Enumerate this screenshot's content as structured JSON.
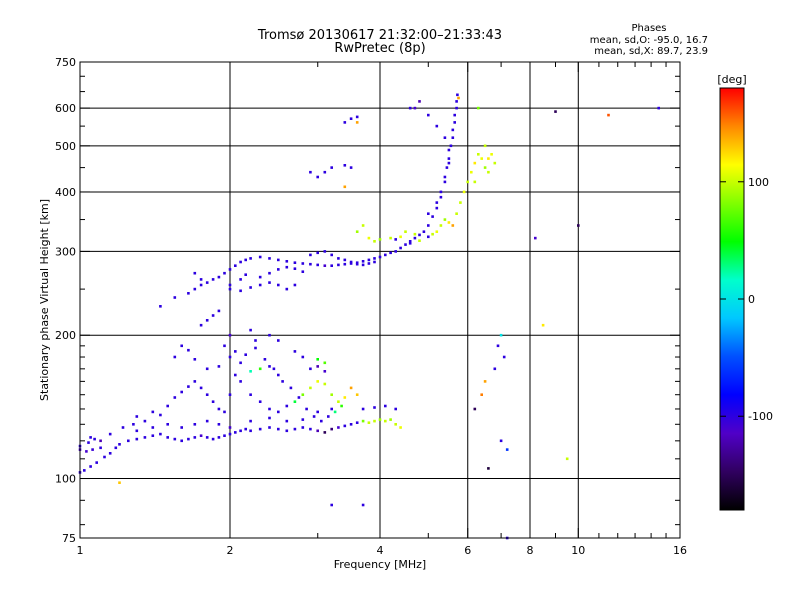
{
  "chart_data": {
    "type": "scatter",
    "title": "Tromsø 20130617 21:32:00–21:33:43",
    "subtitle": "RwPretec (8p)",
    "xlabel": "Frequency [MHz]",
    "ylabel": "Stationary phase Virtual Height [km]",
    "x_scale": "log",
    "y_scale": "log",
    "xlim": [
      1,
      16
    ],
    "ylim": [
      75,
      750
    ],
    "x_ticks": [
      1,
      2,
      4,
      6,
      8,
      10,
      16
    ],
    "x_tick_labels": [
      "1",
      "2",
      "4",
      "6",
      "8",
      "10",
      "16"
    ],
    "x_minor_ticks": [
      3,
      5,
      7,
      9,
      11,
      12,
      13,
      14,
      15
    ],
    "y_ticks": [
      75,
      100,
      200,
      300,
      400,
      500,
      600,
      750
    ],
    "y_tick_labels": [
      "75",
      "100",
      "200",
      "300",
      "400",
      "500",
      "600",
      "750"
    ],
    "y_minor_ticks": [
      80,
      90,
      110,
      120,
      130,
      140,
      150,
      160,
      170,
      180,
      190,
      250,
      350,
      450,
      550,
      650,
      700
    ],
    "x_grid": [
      2,
      4,
      6,
      8,
      10
    ],
    "y_grid": [
      100,
      200,
      300,
      400,
      500,
      600
    ],
    "grid": true,
    "phase_stats": {
      "heading": "Phases",
      "line_o": "mean, sd,O: -95.0, 16.7",
      "line_x": "mean, sd,X:  89.7, 23.9"
    },
    "colorbar": {
      "unit": "[deg]",
      "range": [
        -180,
        180
      ],
      "ticks": [
        100,
        0,
        -100
      ],
      "tick_labels": [
        "100",
        "0",
        "-100"
      ],
      "colors": [
        "#ff0000",
        "#ff8800",
        "#ffff00",
        "#80ff00",
        "#00ff00",
        "#00ffcc",
        "#00c8ff",
        "#0050ff",
        "#0000ff",
        "#5000c8",
        "#300060",
        "#000000"
      ]
    },
    "points": [
      [
        1.0,
        103,
        -100
      ],
      [
        1.02,
        104,
        -100
      ],
      [
        1.05,
        106,
        -100
      ],
      [
        1.08,
        108,
        -100
      ],
      [
        1.12,
        111,
        -100
      ],
      [
        1.15,
        113,
        -100
      ],
      [
        1.18,
        116,
        -100
      ],
      [
        1.2,
        118,
        -100
      ],
      [
        1.0,
        115,
        -110
      ],
      [
        1.03,
        114,
        -110
      ],
      [
        1.06,
        115,
        -105
      ],
      [
        1.1,
        116,
        -100
      ],
      [
        1.0,
        117,
        -100
      ],
      [
        1.04,
        119,
        -100
      ],
      [
        1.07,
        121,
        -100
      ],
      [
        1.25,
        120,
        -100
      ],
      [
        1.3,
        121,
        -100
      ],
      [
        1.35,
        122,
        -100
      ],
      [
        1.4,
        123,
        -100
      ],
      [
        1.45,
        124,
        -100
      ],
      [
        1.5,
        122,
        -100
      ],
      [
        1.55,
        121,
        -100
      ],
      [
        1.6,
        120,
        -100
      ],
      [
        1.65,
        121,
        -100
      ],
      [
        1.7,
        122,
        -100
      ],
      [
        1.75,
        123,
        -110
      ],
      [
        1.8,
        122,
        -100
      ],
      [
        1.85,
        121,
        -100
      ],
      [
        1.9,
        122,
        -100
      ],
      [
        1.95,
        123,
        -100
      ],
      [
        2.0,
        124,
        -100
      ],
      [
        2.05,
        125,
        -100
      ],
      [
        2.1,
        126,
        -100
      ],
      [
        2.15,
        127,
        -100
      ],
      [
        2.2,
        126,
        -100
      ],
      [
        2.3,
        127,
        -100
      ],
      [
        2.4,
        128,
        -100
      ],
      [
        2.5,
        127,
        -100
      ],
      [
        2.6,
        126,
        -100
      ],
      [
        2.7,
        127,
        -100
      ],
      [
        2.8,
        128,
        -100
      ],
      [
        2.9,
        127,
        -100
      ],
      [
        3.0,
        126,
        -120
      ],
      [
        3.1,
        125,
        -150
      ],
      [
        3.2,
        127,
        -140
      ],
      [
        3.3,
        128,
        -110
      ],
      [
        3.4,
        129,
        -100
      ],
      [
        3.5,
        130,
        -100
      ],
      [
        3.6,
        131,
        -100
      ],
      [
        3.7,
        132,
        80
      ],
      [
        3.8,
        131,
        100
      ],
      [
        3.9,
        132,
        100
      ],
      [
        4.0,
        133,
        90
      ],
      [
        4.1,
        132,
        100
      ],
      [
        4.2,
        133,
        90
      ],
      [
        4.3,
        130,
        100
      ],
      [
        4.4,
        128,
        110
      ],
      [
        3.7,
        140,
        -100
      ],
      [
        3.9,
        141,
        -100
      ],
      [
        4.1,
        142,
        -100
      ],
      [
        4.3,
        140,
        -100
      ],
      [
        1.3,
        135,
        -100
      ],
      [
        1.4,
        138,
        -100
      ],
      [
        1.5,
        142,
        -100
      ],
      [
        1.55,
        148,
        -100
      ],
      [
        1.6,
        152,
        -100
      ],
      [
        1.65,
        156,
        -100
      ],
      [
        1.7,
        160,
        -100
      ],
      [
        1.75,
        155,
        -100
      ],
      [
        1.8,
        150,
        -100
      ],
      [
        1.85,
        145,
        -100
      ],
      [
        1.9,
        140,
        -100
      ],
      [
        1.95,
        138,
        -100
      ],
      [
        2.0,
        150,
        -100
      ],
      [
        2.05,
        165,
        -100
      ],
      [
        2.1,
        175,
        -100
      ],
      [
        2.0,
        180,
        -100
      ],
      [
        1.95,
        190,
        -100
      ],
      [
        2.0,
        200,
        -110
      ],
      [
        2.05,
        185,
        -100
      ],
      [
        2.1,
        160,
        -100
      ],
      [
        2.2,
        150,
        -100
      ],
      [
        2.3,
        145,
        -100
      ],
      [
        2.4,
        140,
        -100
      ],
      [
        2.5,
        138,
        -100
      ],
      [
        2.6,
        142,
        -100
      ],
      [
        2.7,
        145,
        40
      ],
      [
        2.8,
        150,
        80
      ],
      [
        2.9,
        155,
        100
      ],
      [
        3.0,
        160,
        110
      ],
      [
        3.1,
        158,
        100
      ],
      [
        3.2,
        150,
        90
      ],
      [
        3.3,
        145,
        100
      ],
      [
        3.4,
        148,
        120
      ],
      [
        3.5,
        155,
        140
      ],
      [
        3.6,
        150,
        130
      ],
      [
        2.9,
        170,
        -100
      ],
      [
        3.0,
        172,
        -120
      ],
      [
        3.1,
        168,
        -110
      ],
      [
        2.5,
        165,
        -100
      ],
      [
        2.4,
        172,
        -100
      ],
      [
        1.8,
        170,
        -100
      ],
      [
        1.7,
        178,
        -100
      ],
      [
        1.9,
        172,
        -100
      ],
      [
        2.2,
        168,
        20
      ],
      [
        2.3,
        170,
        60
      ],
      [
        1.45,
        230,
        -100
      ],
      [
        1.55,
        240,
        -100
      ],
      [
        1.65,
        245,
        -100
      ],
      [
        1.7,
        250,
        -100
      ],
      [
        1.75,
        255,
        -100
      ],
      [
        1.8,
        258,
        -100
      ],
      [
        1.85,
        262,
        -100
      ],
      [
        1.9,
        265,
        -100
      ],
      [
        1.95,
        270,
        -100
      ],
      [
        2.0,
        275,
        -100
      ],
      [
        2.05,
        280,
        -100
      ],
      [
        2.1,
        285,
        -100
      ],
      [
        2.15,
        288,
        -100
      ],
      [
        2.2,
        290,
        -100
      ],
      [
        2.3,
        292,
        -100
      ],
      [
        2.4,
        290,
        -100
      ],
      [
        2.5,
        288,
        -100
      ],
      [
        2.6,
        286,
        -100
      ],
      [
        2.7,
        284,
        -100
      ],
      [
        2.8,
        283,
        -100
      ],
      [
        2.9,
        282,
        -100
      ],
      [
        3.0,
        281,
        -100
      ],
      [
        3.1,
        280,
        -110
      ],
      [
        3.2,
        280,
        -100
      ],
      [
        3.3,
        281,
        -100
      ],
      [
        3.4,
        282,
        -100
      ],
      [
        3.5,
        283,
        -100
      ],
      [
        3.6,
        284,
        -100
      ],
      [
        3.7,
        286,
        -100
      ],
      [
        3.8,
        288,
        -100
      ],
      [
        3.9,
        290,
        -100
      ],
      [
        4.0,
        292,
        -100
      ],
      [
        4.1,
        295,
        -100
      ],
      [
        4.2,
        298,
        -100
      ],
      [
        4.3,
        300,
        -100
      ],
      [
        4.4,
        305,
        -100
      ],
      [
        4.5,
        310,
        -100
      ],
      [
        4.6,
        315,
        -100
      ],
      [
        4.7,
        320,
        -100
      ],
      [
        4.8,
        325,
        -100
      ],
      [
        4.9,
        330,
        -100
      ],
      [
        5.0,
        340,
        -100
      ],
      [
        5.1,
        355,
        -100
      ],
      [
        5.2,
        370,
        -100
      ],
      [
        5.3,
        390,
        -100
      ],
      [
        5.4,
        420,
        -100
      ],
      [
        5.5,
        460,
        -100
      ],
      [
        5.55,
        500,
        -100
      ],
      [
        5.6,
        540,
        -100
      ],
      [
        5.65,
        580,
        -100
      ],
      [
        5.7,
        620,
        -100
      ],
      [
        5.72,
        640,
        -100
      ],
      [
        2.0,
        250,
        -100
      ],
      [
        2.1,
        248,
        -100
      ],
      [
        2.2,
        252,
        -100
      ],
      [
        2.3,
        255,
        -100
      ],
      [
        2.4,
        258,
        -100
      ],
      [
        2.5,
        255,
        -100
      ],
      [
        2.6,
        250,
        -100
      ],
      [
        2.7,
        255,
        -100
      ],
      [
        2.3,
        265,
        -100
      ],
      [
        2.4,
        270,
        -100
      ],
      [
        2.5,
        275,
        -100
      ],
      [
        2.6,
        278,
        -100
      ],
      [
        2.7,
        276,
        -100
      ],
      [
        2.8,
        272,
        -100
      ],
      [
        3.6,
        330,
        90
      ],
      [
        3.7,
        340,
        100
      ],
      [
        3.8,
        320,
        110
      ],
      [
        3.9,
        315,
        100
      ],
      [
        4.0,
        318,
        90
      ],
      [
        4.2,
        320,
        100
      ],
      [
        4.4,
        322,
        110
      ],
      [
        4.5,
        330,
        100
      ],
      [
        4.7,
        326,
        100
      ],
      [
        5.2,
        330,
        110
      ],
      [
        5.3,
        340,
        100
      ],
      [
        5.4,
        350,
        90
      ],
      [
        5.5,
        345,
        120
      ],
      [
        5.6,
        340,
        140
      ],
      [
        5.7,
        360,
        100
      ],
      [
        5.8,
        380,
        100
      ],
      [
        5.9,
        400,
        110
      ],
      [
        6.0,
        420,
        100
      ],
      [
        6.1,
        440,
        110
      ],
      [
        6.2,
        460,
        120
      ],
      [
        6.3,
        480,
        100
      ],
      [
        6.4,
        470,
        110
      ],
      [
        6.5,
        450,
        90
      ],
      [
        6.6,
        440,
        100
      ],
      [
        6.2,
        420,
        100
      ],
      [
        3.4,
        560,
        -100
      ],
      [
        3.5,
        570,
        -100
      ],
      [
        3.6,
        575,
        -100
      ],
      [
        3.6,
        560,
        140
      ],
      [
        3.1,
        440,
        -100
      ],
      [
        3.2,
        450,
        -100
      ],
      [
        3.4,
        455,
        -100
      ],
      [
        3.5,
        450,
        -100
      ],
      [
        3.0,
        430,
        -100
      ],
      [
        2.9,
        440,
        -100
      ],
      [
        3.4,
        410,
        140
      ],
      [
        4.6,
        600,
        -100
      ],
      [
        4.7,
        600,
        -110
      ],
      [
        4.8,
        620,
        -120
      ],
      [
        5.0,
        580,
        -100
      ],
      [
        5.2,
        550,
        -100
      ],
      [
        5.4,
        520,
        -100
      ],
      [
        5.5,
        490,
        -100
      ],
      [
        6.3,
        600,
        80
      ],
      [
        6.6,
        470,
        120
      ],
      [
        6.5,
        500,
        100
      ],
      [
        6.7,
        480,
        110
      ],
      [
        6.8,
        460,
        100
      ],
      [
        6.8,
        170,
        -100
      ],
      [
        6.9,
        190,
        -100
      ],
      [
        7.0,
        200,
        0
      ],
      [
        7.1,
        180,
        -100
      ],
      [
        7.0,
        120,
        -100
      ],
      [
        7.2,
        115,
        -60
      ],
      [
        6.5,
        160,
        140
      ],
      [
        6.4,
        150,
        150
      ],
      [
        6.2,
        140,
        -150
      ],
      [
        6.6,
        105,
        -160
      ],
      [
        8.2,
        320,
        -110
      ],
      [
        8.5,
        210,
        120
      ],
      [
        9.0,
        590,
        -150
      ],
      [
        10.0,
        340,
        -150
      ],
      [
        11.5,
        580,
        160
      ],
      [
        14.5,
        600,
        -100
      ],
      [
        9.5,
        110,
        100
      ],
      [
        7.2,
        75,
        -100
      ],
      [
        3.2,
        88,
        -100
      ],
      [
        3.7,
        88,
        -100
      ],
      [
        1.2,
        98,
        130
      ],
      [
        1.05,
        122,
        -100
      ],
      [
        1.1,
        120,
        -120
      ],
      [
        1.15,
        124,
        -100
      ],
      [
        1.22,
        128,
        -100
      ],
      [
        1.28,
        130,
        -100
      ],
      [
        1.35,
        132,
        -100
      ],
      [
        1.45,
        136,
        -100
      ],
      [
        2.15,
        182,
        -100
      ],
      [
        2.25,
        188,
        -100
      ],
      [
        2.35,
        178,
        -100
      ],
      [
        2.45,
        170,
        -100
      ],
      [
        2.55,
        160,
        -100
      ],
      [
        2.65,
        155,
        -100
      ],
      [
        2.75,
        148,
        -100
      ],
      [
        2.85,
        140,
        -100
      ],
      [
        2.95,
        135,
        -100
      ],
      [
        3.05,
        132,
        -100
      ],
      [
        3.15,
        135,
        -100
      ],
      [
        3.25,
        138,
        30
      ],
      [
        3.35,
        142,
        60
      ],
      [
        1.9,
        130,
        -100
      ],
      [
        2.0,
        128,
        -110
      ],
      [
        2.2,
        132,
        -100
      ],
      [
        2.4,
        134,
        -100
      ],
      [
        2.6,
        132,
        -100
      ],
      [
        2.8,
        133,
        -100
      ],
      [
        3.0,
        138,
        -100
      ],
      [
        3.2,
        140,
        -100
      ],
      [
        1.6,
        128,
        -100
      ],
      [
        1.7,
        130,
        -100
      ],
      [
        1.8,
        132,
        -100
      ],
      [
        1.5,
        130,
        -100
      ],
      [
        1.4,
        128,
        -100
      ],
      [
        1.3,
        126,
        -100
      ],
      [
        1.75,
        210,
        -100
      ],
      [
        1.8,
        215,
        -100
      ],
      [
        1.85,
        220,
        -100
      ],
      [
        1.9,
        225,
        -100
      ],
      [
        1.6,
        190,
        -100
      ],
      [
        1.55,
        180,
        -100
      ],
      [
        1.65,
        186,
        -100
      ],
      [
        2.2,
        205,
        -100
      ],
      [
        2.25,
        195,
        -100
      ],
      [
        2.4,
        200,
        -100
      ],
      [
        2.5,
        195,
        -100
      ],
      [
        2.7,
        185,
        -100
      ],
      [
        2.8,
        180,
        -100
      ],
      [
        3.0,
        178,
        50
      ],
      [
        3.1,
        175,
        70
      ],
      [
        4.3,
        318,
        -100
      ],
      [
        4.6,
        312,
        -100
      ],
      [
        4.8,
        316,
        100
      ],
      [
        5.0,
        322,
        -100
      ],
      [
        5.1,
        326,
        100
      ],
      [
        5.0,
        360,
        -100
      ],
      [
        5.2,
        380,
        -100
      ],
      [
        5.3,
        400,
        -100
      ],
      [
        5.4,
        430,
        -100
      ],
      [
        5.45,
        450,
        -100
      ],
      [
        5.5,
        470,
        -100
      ],
      [
        5.6,
        520,
        -100
      ],
      [
        5.65,
        560,
        -100
      ],
      [
        5.7,
        600,
        -100
      ],
      [
        5.75,
        630,
        140
      ],
      [
        1.7,
        270,
        -100
      ],
      [
        1.75,
        262,
        -100
      ],
      [
        2.0,
        255,
        -100
      ],
      [
        2.1,
        262,
        -100
      ],
      [
        2.15,
        268,
        -100
      ],
      [
        2.9,
        295,
        -100
      ],
      [
        3.0,
        298,
        -100
      ],
      [
        3.1,
        300,
        -100
      ],
      [
        3.2,
        295,
        -100
      ],
      [
        3.3,
        290,
        -100
      ],
      [
        3.4,
        288,
        -100
      ],
      [
        3.5,
        285,
        -100
      ],
      [
        3.6,
        282,
        -100
      ],
      [
        3.7,
        281,
        -100
      ],
      [
        3.8,
        283,
        -100
      ],
      [
        3.9,
        285,
        -100
      ]
    ]
  }
}
